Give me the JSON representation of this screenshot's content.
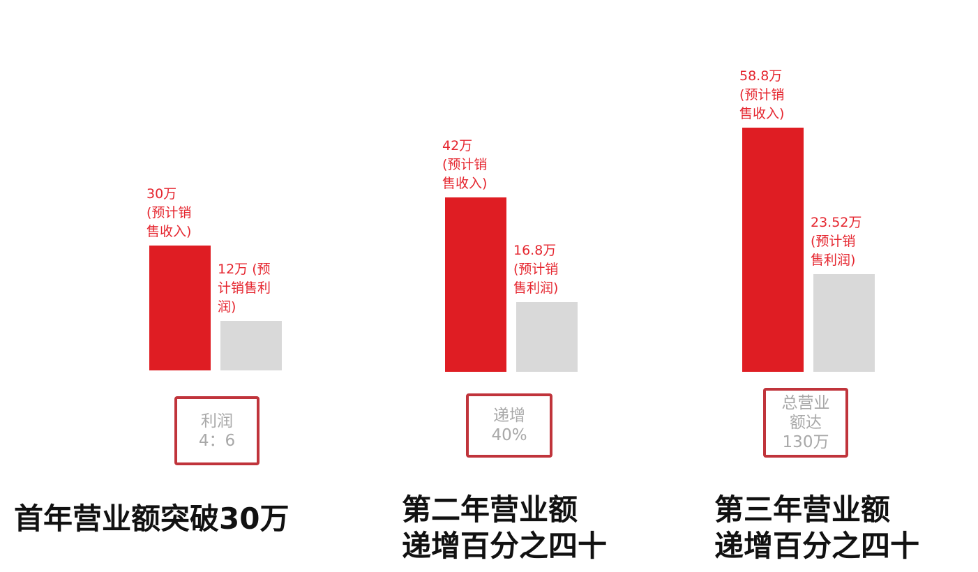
{
  "colors": {
    "revenue": "#df1d23",
    "profit": "#d9d9d9",
    "label_text": "#e5262f",
    "box_border": "#c0343b",
    "box_text": "#a8a8a8",
    "caption_text": "#111111"
  },
  "chart_data": {
    "type": "bar",
    "unit": "万",
    "ylim": [
      0,
      60
    ],
    "grid": false,
    "axes_visible": false,
    "categories": [
      "首年",
      "第二年",
      "第三年"
    ],
    "series": [
      {
        "key": "revenue",
        "values": [
          30,
          42,
          58.8
        ]
      },
      {
        "key": "profit",
        "values": [
          12,
          16.8,
          23.52
        ]
      }
    ],
    "groups": [
      {
        "revenue_label": "30万\n(预计销\n售收入)",
        "profit_label": "12万 (预\n计销售利\n润)",
        "note_lines": [
          "利润",
          "4：6"
        ],
        "caption_lines": [
          "首年营业额突破30万"
        ]
      },
      {
        "revenue_label": "42万\n(预计销\n售收入)",
        "profit_label": "16.8万\n(预计销\n售利润)",
        "note_lines": [
          "递增",
          "40%"
        ],
        "caption_lines": [
          "第二年营业额",
          "递增百分之四十"
        ]
      },
      {
        "revenue_label": "58.8万\n(预计销\n售收入)",
        "profit_label": "23.52万\n(预计销\n售利润)",
        "note_lines": [
          "总营业",
          "额达",
          "130万"
        ],
        "caption_lines": [
          "第三年营业额",
          "递增百分之四十"
        ]
      }
    ]
  }
}
